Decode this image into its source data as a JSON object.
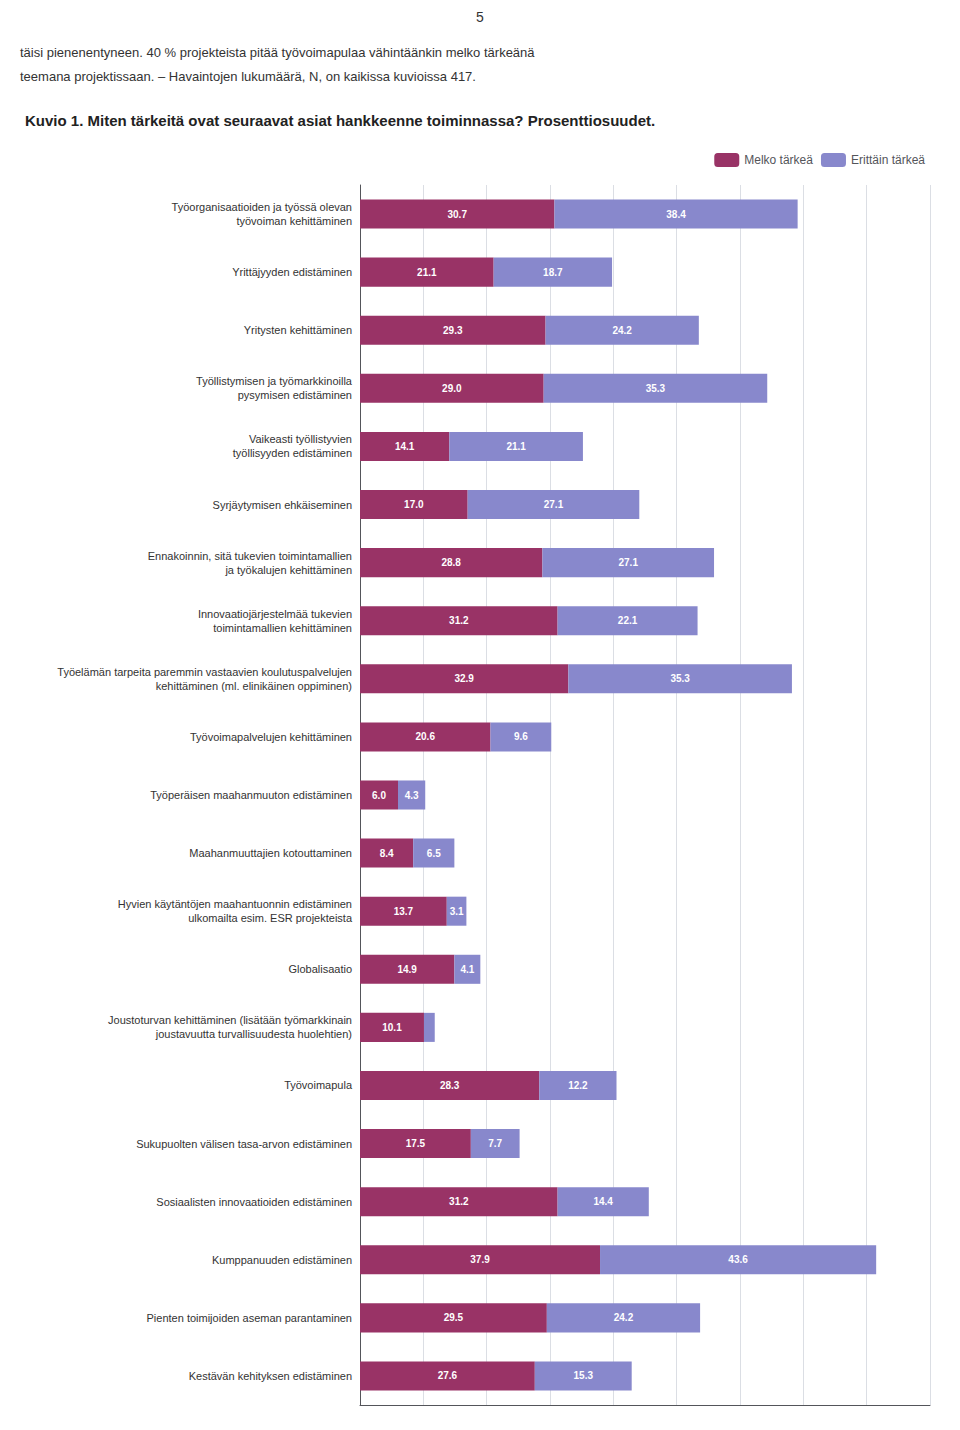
{
  "chart_data": {
    "type": "bar",
    "orientation": "horizontal",
    "stacked": true,
    "title": "Kuvio 1. Miten tärkeitä ovat seuraavat asiat hankkeenne toiminnassa? Prosenttiosuudet.",
    "annotations": [
      "5",
      "täisi pienenentyneen. 40 % projekteista pitää työvoimapulaa vähintäänkin melko tärkeänä",
      "teemana projektissaan. – Havaintojen lukumäärä, N, on kaikissa kuvioissa 417."
    ],
    "categories": [
      "Työorganisaatioiden ja työssä olevan\ntyövoiman kehittäminen",
      "Yrittäjyyden edistäminen",
      "Yritysten kehittäminen",
      "Työllistymisen ja työmarkkinoilla\npysymisen edistäminen",
      "Vaikeasti työllistyvien\ntyöllisyyden edistäminen",
      "Syrjäytymisen ehkäiseminen",
      "Ennakoinnin, sitä tukevien toimintamallien\nja työkalujen kehittäminen",
      "Innovaatiojärjestelmää tukevien\ntoimintamallien kehittäminen",
      "Työelämän tarpeita paremmin vastaavien koulutuspalvelujen\nkehittäminen (ml. elinikäinen oppiminen)",
      "Työvoimapalvelujen kehittäminen",
      "Työperäisen maahanmuuton edistäminen",
      "Maahanmuuttajien kotouttaminen",
      "Hyvien käytäntöjen maahantuonnin edistäminen\nulkomailta esim. ESR projekteista",
      "Globalisaatio",
      "Joustoturvan kehittäminen (lisätään työmarkkinain\njoustavuutta turvallisuudesta huolehtien)",
      "Työvoimapula",
      "Sukupuolten välisen tasa-arvon edistäminen",
      "Sosiaalisten innovaatioiden edistäminen",
      "Kumppanuuden edistäminen",
      "Pienten toimijoiden aseman parantaminen",
      "Kestävän kehityksen edistäminen"
    ],
    "series": [
      {
        "name": "Melko tärkeä",
        "color": "#993366",
        "values": [
          30.7,
          21.1,
          29.3,
          29.0,
          14.1,
          17.0,
          28.8,
          31.2,
          32.9,
          20.6,
          6.0,
          8.4,
          13.7,
          14.9,
          10.1,
          28.3,
          17.5,
          31.2,
          37.9,
          29.5,
          27.6
        ],
        "value_labels": [
          "30.7",
          "21.1",
          "29.3",
          "29.0",
          "14.1",
          "17.0",
          "28.8",
          "31.2",
          "32.9",
          "20.6",
          "6.0",
          "8.4",
          "13.7",
          "14.9",
          "10.1",
          "28.3",
          "17.5",
          "31.2",
          "37.9",
          "29.5",
          "27.6"
        ]
      },
      {
        "name": "Erittäin tärkeä",
        "color": "#8888CC",
        "values": [
          38.4,
          18.7,
          24.2,
          35.3,
          21.1,
          27.1,
          27.1,
          22.1,
          35.3,
          9.6,
          4.3,
          6.5,
          3.1,
          4.1,
          1.7,
          12.2,
          7.7,
          14.4,
          43.6,
          24.2,
          15.3
        ],
        "value_labels": [
          "38.4",
          "18.7",
          "24.2",
          "35.3",
          "21.1",
          "27.1",
          "27.1",
          "22.1",
          "35.3",
          "9.6",
          "4.3",
          "6.5",
          "3.1",
          "4.1",
          null,
          "12.2",
          "7.7",
          "14.4",
          "43.6",
          "24.2",
          "15.3"
        ]
      }
    ],
    "xlim": [
      0,
      90
    ],
    "xticks": [
      0,
      10,
      20,
      30,
      40,
      50,
      60,
      70,
      80,
      90
    ],
    "grid": true,
    "tick_labels": "y",
    "legend": "upper right",
    "data_labels": true
  }
}
